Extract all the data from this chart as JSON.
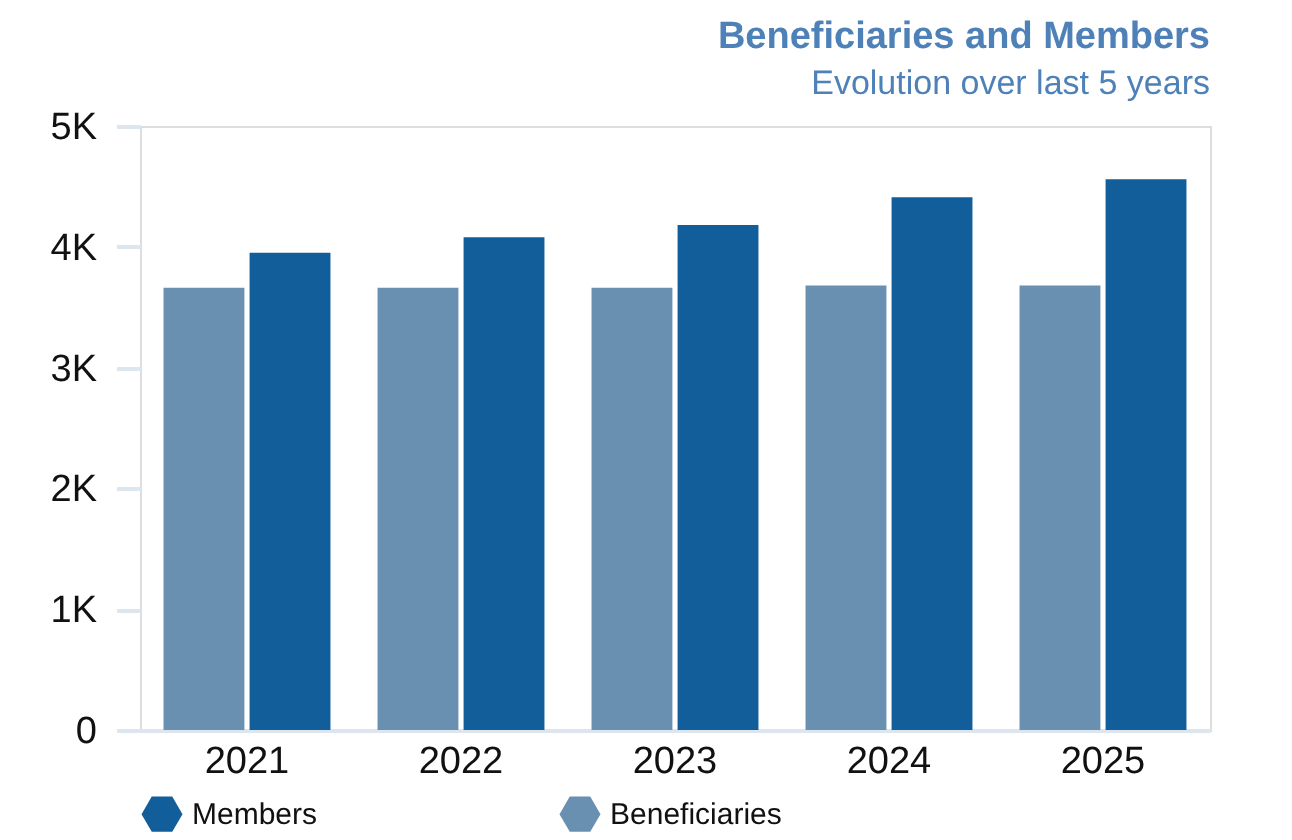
{
  "chart_data": {
    "type": "bar",
    "title": "Beneficiaries and Members",
    "subtitle": "Evolution over last 5 years",
    "categories": [
      "2021",
      "2022",
      "2023",
      "2024",
      "2025"
    ],
    "series": [
      {
        "name": "Beneficiaries",
        "color": "#6990b0",
        "values": [
          3660,
          3660,
          3660,
          3680,
          3680
        ]
      },
      {
        "name": "Members",
        "color": "#115e9b",
        "values": [
          3950,
          4080,
          4180,
          4410,
          4560
        ]
      }
    ],
    "ylim": [
      0,
      5000
    ],
    "yticks": [
      0,
      {
        "value": 1000,
        "label": "1K"
      },
      {
        "value": 2000,
        "label": "2K"
      },
      {
        "value": 3000,
        "label": "3K"
      },
      {
        "value": 4000,
        "label": "4K"
      },
      {
        "value": 5000,
        "label": "5K"
      }
    ],
    "grid": false,
    "legend": "bottom"
  }
}
